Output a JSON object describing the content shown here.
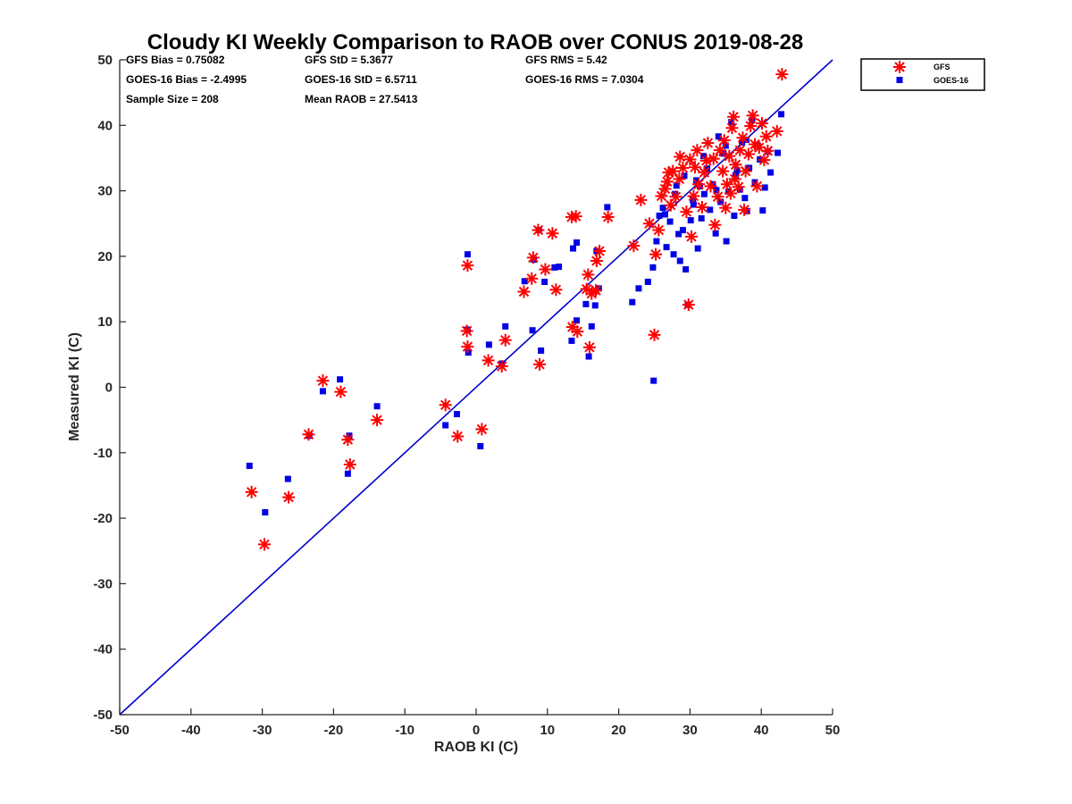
{
  "chart_data": {
    "type": "scatter",
    "title": "Cloudy KI Weekly Comparison to RAOB over CONUS 2019-08-28",
    "xlabel": "RAOB KI (C)",
    "ylabel": "Measured KI (C)",
    "xlim": [
      -50,
      50
    ],
    "ylim": [
      -50,
      50
    ],
    "xticks": [
      "-50",
      "-40",
      "-30",
      "-20",
      "-10",
      "0",
      "10",
      "20",
      "30",
      "40",
      "50"
    ],
    "yticks": [
      "-50",
      "-40",
      "-30",
      "-20",
      "-10",
      "0",
      "10",
      "20",
      "30",
      "40",
      "50"
    ],
    "reference_line": {
      "label": "1:1",
      "x": [
        -50,
        50
      ],
      "y": [
        -50,
        50
      ],
      "color": "#0000cc"
    },
    "legend": {
      "position": "top-right, outside plot",
      "entries": [
        "GFS",
        "GOES-16"
      ]
    },
    "stats": {
      "gfs_bias": "GFS Bias = 0.75082",
      "gfs_std": "GFS StD = 5.3677",
      "gfs_rms": "GFS RMS = 5.42",
      "goes_bias": "GOES-16 Bias = -2.4995",
      "goes_std": "GOES-16 StD = 6.5711",
      "goes_rms": "GOES-16 RMS = 7.0304",
      "sample_size": "Sample Size = 208",
      "mean_raob": "Mean RAOB = 27.5413"
    },
    "series": [
      {
        "name": "GFS",
        "marker": "asterisk",
        "color": "#ff0000",
        "points": [
          [
            -31.5,
            -16
          ],
          [
            -29.7,
            -24
          ],
          [
            -26.3,
            -16.8
          ],
          [
            -23.5,
            -7.2
          ],
          [
            -21.5,
            1
          ],
          [
            -19,
            -0.7
          ],
          [
            -18,
            -8
          ],
          [
            -17.7,
            -11.8
          ],
          [
            -13.9,
            -5
          ],
          [
            -4.3,
            -2.7
          ],
          [
            -2.6,
            -7.5
          ],
          [
            -1.2,
            18.6
          ],
          [
            -1.3,
            8.6
          ],
          [
            -1.2,
            6.2
          ],
          [
            0.8,
            -6.4
          ],
          [
            1.7,
            4.1
          ],
          [
            3.6,
            3.2
          ],
          [
            4.1,
            7.2
          ],
          [
            6.7,
            14.6
          ],
          [
            7.8,
            16.6
          ],
          [
            8,
            19.8
          ],
          [
            8.7,
            24
          ],
          [
            8.9,
            3.5
          ],
          [
            9.7,
            18
          ],
          [
            10.7,
            23.5
          ],
          [
            11.2,
            14.9
          ],
          [
            13.4,
            26
          ],
          [
            14,
            26.1
          ],
          [
            13.5,
            9.2
          ],
          [
            14.2,
            8.5
          ],
          [
            15.5,
            15
          ],
          [
            15.9,
            6.1
          ],
          [
            15.7,
            17.2
          ],
          [
            16.2,
            14.3
          ],
          [
            16.8,
            14.8
          ],
          [
            16.9,
            19.3
          ],
          [
            17.3,
            20.8
          ],
          [
            18.5,
            26
          ],
          [
            22.1,
            21.6
          ],
          [
            23.1,
            28.6
          ],
          [
            24.3,
            25
          ],
          [
            25,
            8
          ],
          [
            25.2,
            20.3
          ],
          [
            25.6,
            24
          ],
          [
            26,
            29.2
          ],
          [
            26.5,
            30.3
          ],
          [
            27,
            32.8
          ],
          [
            27.3,
            27.8
          ],
          [
            27.6,
            33
          ],
          [
            28,
            29.1
          ],
          [
            28.5,
            31.8
          ],
          [
            29,
            33.5
          ],
          [
            29.5,
            26.8
          ],
          [
            29.8,
            12.6
          ],
          [
            30,
            34.8
          ],
          [
            30.5,
            29.2
          ],
          [
            31,
            36.2
          ],
          [
            31.2,
            31
          ],
          [
            31.7,
            27.5
          ],
          [
            32,
            32.8
          ],
          [
            32.5,
            37.3
          ],
          [
            32.9,
            30.7
          ],
          [
            33.3,
            34.9
          ],
          [
            33.5,
            24.8
          ],
          [
            33.9,
            29.1
          ],
          [
            34.2,
            36.2
          ],
          [
            34.6,
            33
          ],
          [
            35,
            27.4
          ],
          [
            35.2,
            31
          ],
          [
            35.5,
            35.3
          ],
          [
            35.9,
            39.6
          ],
          [
            36.1,
            41.3
          ],
          [
            36.4,
            34
          ],
          [
            36.8,
            30.6
          ],
          [
            37,
            36.2
          ],
          [
            37.4,
            38.1
          ],
          [
            37.6,
            27.1
          ],
          [
            37.8,
            33
          ],
          [
            38.2,
            35.6
          ],
          [
            38.5,
            39.9
          ],
          [
            38.8,
            41.5
          ],
          [
            39.1,
            37.1
          ],
          [
            39.4,
            30.7
          ],
          [
            39.7,
            36.6
          ],
          [
            40.1,
            40.3
          ],
          [
            40.4,
            34.7
          ],
          [
            40.7,
            38.3
          ],
          [
            40.9,
            36.1
          ],
          [
            42.2,
            39.1
          ],
          [
            42.9,
            47.8
          ],
          [
            28.6,
            35.2
          ],
          [
            30.7,
            33.6
          ],
          [
            34.8,
            37.7
          ],
          [
            36.3,
            31.8
          ],
          [
            26.8,
            31.4
          ],
          [
            32.3,
            34.6
          ],
          [
            30.2,
            23
          ],
          [
            35.7,
            29.6
          ]
        ]
      },
      {
        "name": "GOES-16",
        "marker": "square",
        "color": "#0000e6",
        "points": [
          [
            -31.8,
            -12
          ],
          [
            -29.6,
            -19.1
          ],
          [
            -26.4,
            -14
          ],
          [
            -23.4,
            -7.4
          ],
          [
            -21.5,
            -0.6
          ],
          [
            -19.1,
            1.2
          ],
          [
            -18,
            -13.2
          ],
          [
            -17.8,
            -7.4
          ],
          [
            -13.9,
            -2.9
          ],
          [
            -4.3,
            -5.8
          ],
          [
            -2.7,
            -4.1
          ],
          [
            -1.2,
            20.3
          ],
          [
            -1.1,
            5.3
          ],
          [
            -1.2,
            8.8
          ],
          [
            0.6,
            -9
          ],
          [
            1.8,
            6.5
          ],
          [
            3.6,
            3.6
          ],
          [
            4.1,
            9.3
          ],
          [
            6.8,
            16.2
          ],
          [
            7.9,
            8.7
          ],
          [
            8.1,
            19.5
          ],
          [
            8.8,
            24
          ],
          [
            9.1,
            5.6
          ],
          [
            9.6,
            16.1
          ],
          [
            11,
            18.3
          ],
          [
            11.6,
            18.4
          ],
          [
            13.6,
            21.2
          ],
          [
            14.1,
            22.1
          ],
          [
            13.4,
            7.1
          ],
          [
            14.1,
            10.2
          ],
          [
            15.4,
            12.7
          ],
          [
            15.8,
            4.7
          ],
          [
            16.2,
            9.3
          ],
          [
            16.7,
            12.5
          ],
          [
            17.2,
            15.1
          ],
          [
            16.9,
            20.8
          ],
          [
            18.4,
            27.5
          ],
          [
            21.9,
            13
          ],
          [
            22.8,
            15.1
          ],
          [
            24.1,
            16.1
          ],
          [
            24.9,
            1
          ],
          [
            24.8,
            18.3
          ],
          [
            25.3,
            22.3
          ],
          [
            25.7,
            26.2
          ],
          [
            26.2,
            27.4
          ],
          [
            26.7,
            21.4
          ],
          [
            27.2,
            25.3
          ],
          [
            27.7,
            20.3
          ],
          [
            28.1,
            30.8
          ],
          [
            28.6,
            19.3
          ],
          [
            29,
            24
          ],
          [
            29.4,
            18
          ],
          [
            29.7,
            12.6
          ],
          [
            30.1,
            25.5
          ],
          [
            30.5,
            27.9
          ],
          [
            30.9,
            31.6
          ],
          [
            31.1,
            21.2
          ],
          [
            31.6,
            25.8
          ],
          [
            32,
            29.5
          ],
          [
            32.4,
            33.4
          ],
          [
            32.8,
            27.1
          ],
          [
            33.2,
            31
          ],
          [
            33.6,
            23.5
          ],
          [
            34,
            38.3
          ],
          [
            34.3,
            28.3
          ],
          [
            34.7,
            35.7
          ],
          [
            35.1,
            22.3
          ],
          [
            35.4,
            29.9
          ],
          [
            35.8,
            40.5
          ],
          [
            36.2,
            26.2
          ],
          [
            36.6,
            33.1
          ],
          [
            37,
            30.2
          ],
          [
            37.3,
            37.4
          ],
          [
            37.7,
            28.9
          ],
          [
            38,
            26.9
          ],
          [
            38.3,
            33.5
          ],
          [
            38.7,
            40.8
          ],
          [
            39.1,
            31.3
          ],
          [
            39.5,
            36.9
          ],
          [
            39.8,
            34.8
          ],
          [
            40.2,
            27
          ],
          [
            40.5,
            30.5
          ],
          [
            40.9,
            36
          ],
          [
            41.3,
            32.8
          ],
          [
            42.3,
            35.8
          ],
          [
            42.8,
            41.7
          ],
          [
            27.9,
            29.5
          ],
          [
            29.2,
            32.3
          ],
          [
            30.4,
            28.6
          ],
          [
            31.9,
            35.3
          ],
          [
            33.7,
            30.1
          ],
          [
            35,
            36.9
          ],
          [
            36.4,
            32.4
          ],
          [
            37.9,
            37.8
          ],
          [
            26.5,
            26.4
          ],
          [
            28.4,
            23.4
          ],
          [
            31.4,
            30.7
          ]
        ]
      }
    ]
  }
}
